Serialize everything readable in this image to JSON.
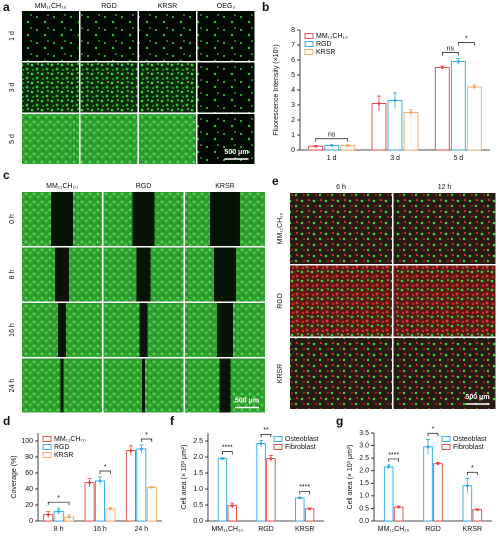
{
  "panels": {
    "a": {
      "label": "a",
      "columns": [
        "MM₁₁CH₁₀",
        "RGD",
        "KRSR",
        "OEG₃"
      ],
      "rows": [
        "1 d",
        "3 d",
        "5 d"
      ],
      "scale_bar": "500 μm"
    },
    "c": {
      "label": "c",
      "columns": [
        "MM₁₁CH₁₀",
        "RGD",
        "KRSR"
      ],
      "rows": [
        "0 h",
        "8 h",
        "16 h",
        "24 h"
      ],
      "scale_bar": "500 μm"
    },
    "e": {
      "label": "e",
      "columns": [
        "6 h",
        "12 h"
      ],
      "rows": [
        "MM₁₁CH₁₀",
        "RGD",
        "KRSR"
      ],
      "scale_bar": "500 μm"
    }
  },
  "chart_data": [
    {
      "label": "b",
      "type": "bar",
      "ylabel": "Fluorescence Intensity (×10⁵)",
      "categories": [
        "1 d",
        "3 d",
        "5 d"
      ],
      "series": [
        {
          "name": "MM₁₁CH₁₀",
          "color": "#e8413c",
          "values": [
            0.25,
            3.1,
            5.5
          ],
          "errors": [
            0.05,
            0.5,
            0.1
          ]
        },
        {
          "name": "RGD",
          "color": "#2aa7e8",
          "values": [
            0.3,
            3.3,
            5.9
          ],
          "errors": [
            0.05,
            0.5,
            0.2
          ]
        },
        {
          "name": "KRSR",
          "color": "#f5a55a",
          "values": [
            0.3,
            2.5,
            4.2
          ],
          "errors": [
            0.05,
            0.2,
            0.15
          ]
        }
      ],
      "ylim": [
        0,
        8
      ],
      "yticks": [
        0,
        1,
        2,
        3,
        4,
        5,
        6,
        7,
        8
      ],
      "legend": "upper left",
      "annotations": [
        "ns",
        "ns",
        "*"
      ]
    },
    {
      "label": "d",
      "type": "bar",
      "ylabel": "Coverage (%)",
      "categories": [
        "8 h",
        "16 h",
        "24 h"
      ],
      "series": [
        {
          "name": "MM₁₁CH₁₀",
          "color": "#e8413c",
          "values": [
            8,
            48,
            88
          ],
          "errors": [
            4,
            5,
            6
          ]
        },
        {
          "name": "RGD",
          "color": "#2aa7e8",
          "values": [
            12,
            50,
            90
          ],
          "errors": [
            4,
            5,
            5
          ]
        },
        {
          "name": "KRSR",
          "color": "#f5a55a",
          "values": [
            5,
            15,
            42
          ],
          "errors": [
            3,
            2,
            1
          ]
        }
      ],
      "ylim": [
        0,
        110
      ],
      "yticks": [
        0,
        20,
        40,
        60,
        80,
        100
      ],
      "legend": "upper left",
      "annotations": [
        "*",
        "*",
        "*"
      ]
    },
    {
      "label": "f",
      "type": "bar",
      "ylabel": "Cell area (× 10³ μm²)",
      "categories": [
        "MM₁₁CH₁₀",
        "RGD",
        "KRSR"
      ],
      "series": [
        {
          "name": "Osteoblast",
          "color": "#2aa7e8",
          "values": [
            1.95,
            2.42,
            0.72
          ],
          "errors": [
            0.03,
            0.1,
            0.02
          ]
        },
        {
          "name": "Fibroblast",
          "color": "#e8413c",
          "values": [
            0.48,
            1.95,
            0.38
          ],
          "errors": [
            0.08,
            0.1,
            0.03
          ]
        }
      ],
      "ylim": [
        0,
        2.75
      ],
      "yticks": [
        {
          "value": 0,
          "label": "0.0"
        },
        {
          "value": 0.5,
          "label": "0.5"
        },
        {
          "value": 1,
          "label": "1.0"
        },
        {
          "value": 1.5,
          "label": "1.5"
        },
        {
          "value": 2,
          "label": "2.0"
        },
        {
          "value": 2.5,
          "label": "2.5"
        }
      ],
      "legend": "upper right",
      "annotations": [
        "****",
        "**",
        "****"
      ]
    },
    {
      "label": "g",
      "type": "bar",
      "ylabel": "Cell area (× 10³ μm²)",
      "categories": [
        "MM₁₁CH₁₀",
        "RGD",
        "KRSR"
      ],
      "series": [
        {
          "name": "Osteoblast",
          "color": "#2aa7e8",
          "values": [
            2.15,
            2.95,
            1.4
          ],
          "errors": [
            0.08,
            0.3,
            0.3
          ]
        },
        {
          "name": "Fibroblast",
          "color": "#e8413c",
          "values": [
            0.55,
            2.28,
            0.45
          ],
          "errors": [
            0.05,
            0.05,
            0.03
          ]
        }
      ],
      "ylim": [
        0,
        3.5
      ],
      "yticks": [
        {
          "value": 0,
          "label": "0.0"
        },
        {
          "value": 0.5,
          "label": "0.5"
        },
        {
          "value": 1,
          "label": "1.0"
        },
        {
          "value": 1.5,
          "label": "1.5"
        },
        {
          "value": 2,
          "label": "2.0"
        },
        {
          "value": 2.5,
          "label": "2.5"
        },
        {
          "value": 3,
          "label": "3.0"
        },
        {
          "value": 3.5,
          "label": "3.5"
        }
      ],
      "legend": "upper right",
      "annotations": [
        "****",
        "*",
        "*"
      ]
    }
  ]
}
